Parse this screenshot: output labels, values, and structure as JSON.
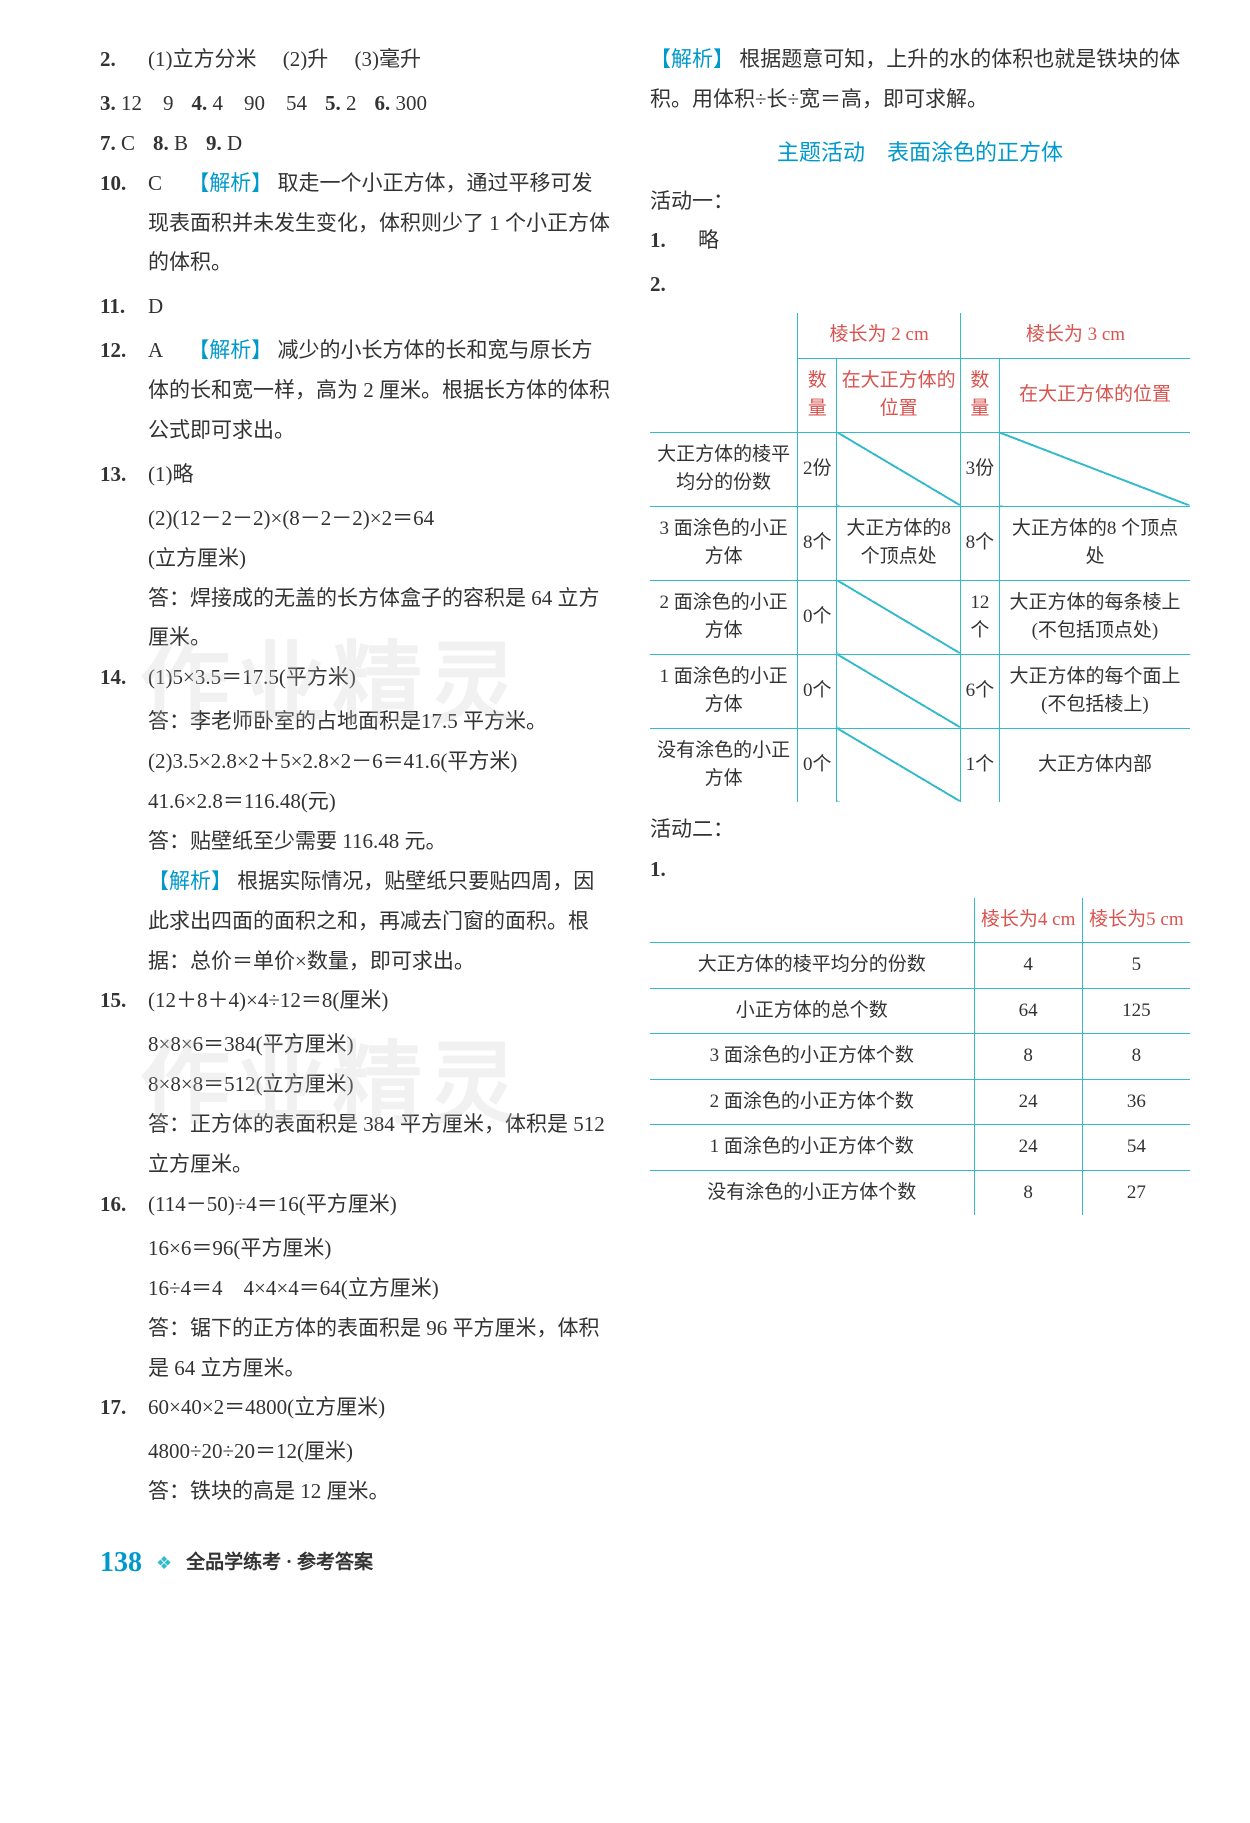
{
  "left": {
    "q2": {
      "num": "2.",
      "parts": [
        "(1)立方分米",
        "(2)升",
        "(3)毫升"
      ]
    },
    "line3": [
      {
        "n": "3.",
        "v": "12　9"
      },
      {
        "n": "4.",
        "v": "4　90　54"
      },
      {
        "n": "5.",
        "v": "2"
      },
      {
        "n": "6.",
        "v": "300"
      }
    ],
    "line7": [
      {
        "n": "7.",
        "v": "C"
      },
      {
        "n": "8.",
        "v": "B"
      },
      {
        "n": "9.",
        "v": "D"
      }
    ],
    "q10": {
      "num": "10.",
      "ans": "C",
      "tag": "【解析】",
      "text": "取走一个小正方体，通过平移可发现表面积并未发生变化，体积则少了 1 个小正方体的体积。"
    },
    "q11": {
      "num": "11.",
      "v": "D"
    },
    "q12": {
      "num": "12.",
      "ans": "A",
      "tag": "【解析】",
      "text": "减少的小长方体的长和宽与原长方体的长和宽一样，高为 2 厘米。根据长方体的体积公式即可求出。"
    },
    "q13": {
      "num": "13.",
      "p1": "(1)略",
      "p2a": "(2)(12－2－2)×(8－2－2)×2＝64",
      "p2b": "(立方厘米)",
      "p2c": "答：焊接成的无盖的长方体盒子的容积是 64 立方厘米。"
    },
    "q14": {
      "num": "14.",
      "a1": "(1)5×3.5＝17.5(平方米)",
      "a2": "答：李老师卧室的占地面积是17.5 平方米。",
      "b1": "(2)3.5×2.8×2＋5×2.8×2－6＝41.6(平方米)",
      "b2": "41.6×2.8＝116.48(元)",
      "b3": "答：贴壁纸至少需要 116.48 元。",
      "tag": "【解析】",
      "expl": "根据实际情况，贴壁纸只要贴四周，因此求出四面的面积之和，再减去门窗的面积。根据：总价＝单价×数量，即可求出。"
    },
    "q15": {
      "num": "15.",
      "l1": "(12＋8＋4)×4÷12＝8(厘米)",
      "l2": "8×8×6＝384(平方厘米)",
      "l3": "8×8×8＝512(立方厘米)",
      "ans": "答：正方体的表面积是 384 平方厘米，体积是 512 立方厘米。"
    },
    "q16": {
      "num": "16.",
      "l1": "(114－50)÷4＝16(平方厘米)",
      "l2": "16×6＝96(平方厘米)",
      "l3": "16÷4＝4　4×4×4＝64(立方厘米)",
      "ans": "答：锯下的正方体的表面积是 96 平方厘米，体积是 64 立方厘米。"
    },
    "q17": {
      "num": "17.",
      "l1": "60×40×2＝4800(立方厘米)",
      "l2": "4800÷20÷20＝12(厘米)",
      "ans": "答：铁块的高是 12 厘米。"
    }
  },
  "right": {
    "top_tag": "【解析】",
    "top_text": "根据题意可知，上升的水的体积也就是铁块的体积。用体积÷长÷宽＝高，即可求解。",
    "topic": "主题活动　表面涂色的正方体",
    "act1_label": "活动一：",
    "act1_q1": {
      "num": "1.",
      "v": "略"
    },
    "act1_q2": {
      "num": "2."
    },
    "t1": {
      "h1": "棱长为 2 cm",
      "h2": "棱长为 3 cm",
      "sub": [
        "数量",
        "在大正方体的位置",
        "数量",
        "在大正方体的位置"
      ],
      "rows": [
        {
          "label": "大正方体的棱平均分的份数",
          "a": "2份",
          "b": "",
          "c": "3份",
          "d": "",
          "diag": [
            1,
            3
          ]
        },
        {
          "label": "3 面涂色的小正方体",
          "a": "8个",
          "b": "大正方体的8 个顶点处",
          "c": "8个",
          "d": "大正方体的8 个顶点处"
        },
        {
          "label": "2 面涂色的小正方体",
          "a": "0个",
          "b": "",
          "c": "12个",
          "d": "大正方体的每条棱上(不包括顶点处)",
          "diag": [
            1
          ]
        },
        {
          "label": "1 面涂色的小正方体",
          "a": "0个",
          "b": "",
          "c": "6个",
          "d": "大正方体的每个面上(不包括棱上)",
          "diag": [
            1
          ]
        },
        {
          "label": "没有涂色的小正方体",
          "a": "0个",
          "b": "",
          "c": "1个",
          "d": "大正方体内部",
          "diag": [
            1
          ]
        }
      ]
    },
    "act2_label": "活动二：",
    "act2_q1": {
      "num": "1."
    },
    "t2": {
      "h": [
        "棱长为4 cm",
        "棱长为5 cm"
      ],
      "rows": [
        [
          "大正方体的棱平均分的份数",
          "4",
          "5"
        ],
        [
          "小正方体的总个数",
          "64",
          "125"
        ],
        [
          "3 面涂色的小正方体个数",
          "8",
          "8"
        ],
        [
          "2 面涂色的小正方体个数",
          "24",
          "36"
        ],
        [
          "1 面涂色的小正方体个数",
          "24",
          "54"
        ],
        [
          "没有涂色的小正方体个数",
          "8",
          "27"
        ]
      ]
    }
  },
  "footer": {
    "page": "138",
    "title": "全品学练考 · 参考答案"
  },
  "watermark": "作业精灵"
}
